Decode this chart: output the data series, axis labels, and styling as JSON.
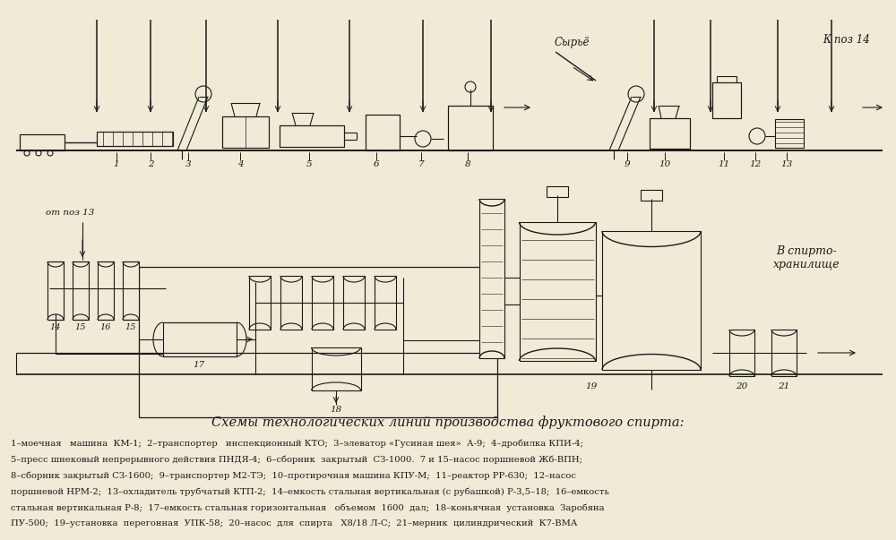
{
  "bg_color": "#f0ead6",
  "line_color": "#1a1a1a",
  "title": "Схемы технологических линий производства фруктового спирта:",
  "title_fontsize": 10.5,
  "caption_fontsize": 7.2,
  "caption_lines": [
    "1–моечная   машина  КМ-1;  2–транспортер   инспекционный КТО;  3–элеватор «Гусиная шея»  А-9;  4–дробилка КПИ-4;",
    "5–пресс шнековый непрерывного действия ПНДЯ-4;  6–сборник  закрытый  СЗ-1000.  7 и 15–насос поршневой Жб-ВПН;",
    "8–сборник закрытый СЗ-1600;  9–транспортер М2-ТЭ;  10–протирочная машина КПУ-М;  11–реактор РР-630;  12–насос",
    "поршневой НРМ-2;  13–охладитель трубчатый КТП-2;  14–емкость стальная вертикальная (с рубашкой) Р-3,5–18;  16–емкость",
    "стальная вертикальная Р-8;  17–емкость стальная горизонтальная   объемом  1600  дал;  18–коньячная  установка  Заробяна",
    "ПУ-500;  19–установка  перегонная  УПК-58;  20–насос  для  спирта   Х8/18 Л-С;  21–мерник  цилиндрический  К7-ВМА"
  ],
  "annotation_top_right": "К поз 14",
  "annotation_mid_right": "В спирто-\nхранилище",
  "annotation_syryo": "Сырьё",
  "annotation_ot": "от поз 13"
}
